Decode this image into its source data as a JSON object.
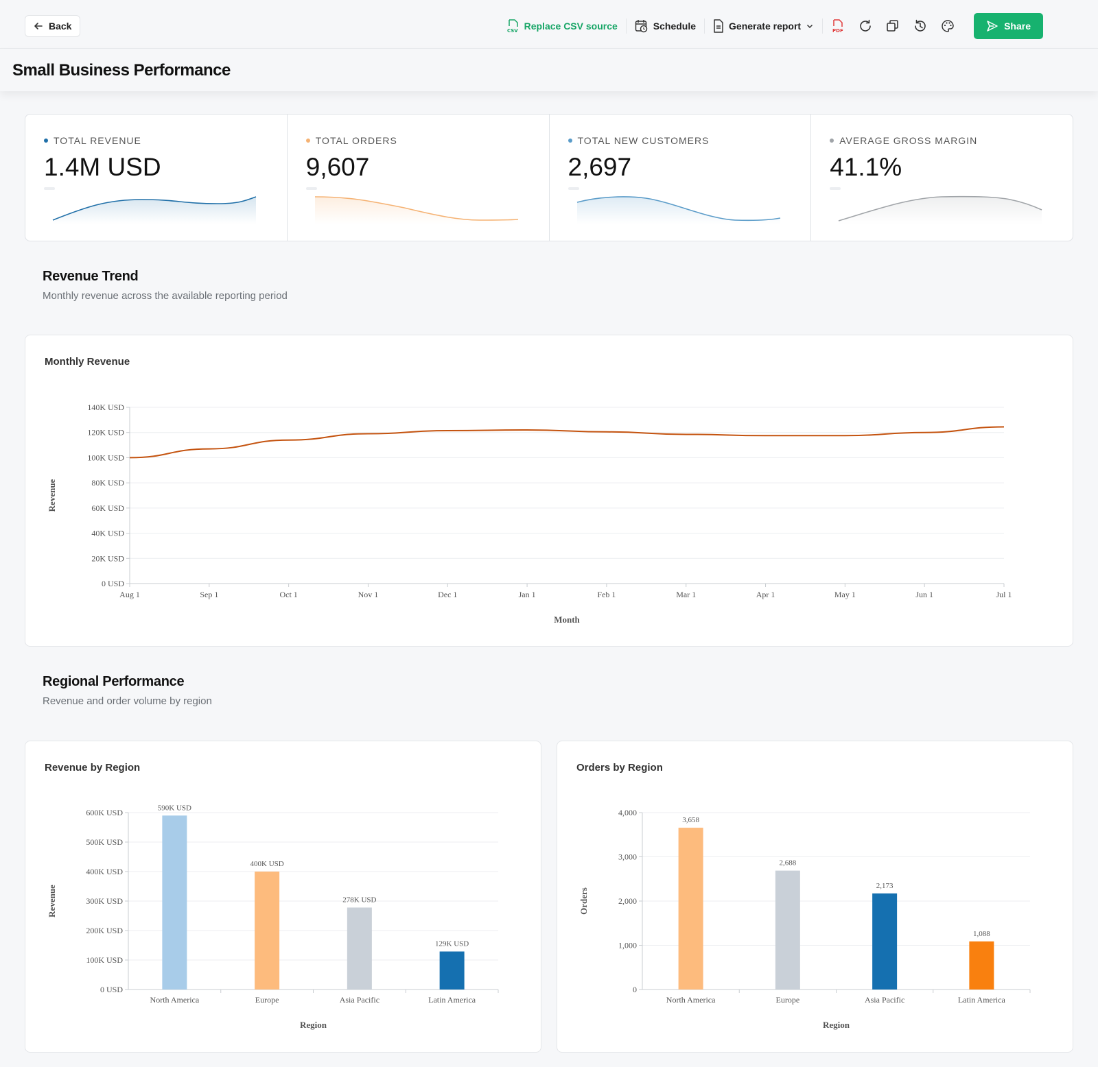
{
  "header": {
    "back_label": "Back",
    "replace_csv_label": "Replace CSV source",
    "schedule_label": "Schedule",
    "generate_report_label": "Generate report",
    "share_label": "Share",
    "page_title": "Small Business Performance"
  },
  "icons": [
    "arrow-left-icon",
    "csv-file-icon",
    "calendar-clock-icon",
    "document-icon",
    "chevron-down-icon",
    "pdf-icon",
    "refresh-icon",
    "duplicate-icon",
    "history-icon",
    "palette-icon",
    "send-icon"
  ],
  "kpis": [
    {
      "label": "TOTAL REVENUE",
      "value": "1.4M USD",
      "color": "#1f6fa8"
    },
    {
      "label": "TOTAL ORDERS",
      "value": "9,607",
      "color": "#f5b273"
    },
    {
      "label": "TOTAL NEW CUSTOMERS",
      "value": "2,697",
      "color": "#5b9cc9"
    },
    {
      "label": "AVERAGE GROSS MARGIN",
      "value": "41.1%",
      "color": "#a0a4a8"
    }
  ],
  "revenue_trend": {
    "title": "Revenue Trend",
    "subtitle": "Monthly revenue across the available reporting period"
  },
  "regional": {
    "title": "Regional Performance",
    "subtitle": "Revenue and order volume by region"
  },
  "chart_data": [
    {
      "type": "line",
      "title": "Monthly Revenue",
      "xlabel": "Month",
      "ylabel": "Revenue",
      "categories": [
        "Aug 1",
        "Sep 1",
        "Oct 1",
        "Nov 1",
        "Dec 1",
        "Jan 1",
        "Feb 1",
        "Mar 1",
        "Apr 1",
        "May 1",
        "Jun 1",
        "Jul 1"
      ],
      "values": [
        100000,
        107000,
        114000,
        119000,
        121500,
        122000,
        120500,
        118500,
        117500,
        117500,
        120000,
        124500
      ],
      "yticks": [
        "0 USD",
        "20K USD",
        "40K USD",
        "60K USD",
        "80K USD",
        "100K USD",
        "120K USD",
        "140K USD"
      ],
      "ylim": [
        0,
        140000
      ],
      "color": "#c4530f"
    },
    {
      "type": "bar",
      "title": "Revenue by Region",
      "xlabel": "Region",
      "ylabel": "Revenue",
      "categories": [
        "North America",
        "Europe",
        "Asia Pacific",
        "Latin America"
      ],
      "values": [
        590000,
        400000,
        278000,
        129000
      ],
      "value_labels": [
        "590K USD",
        "400K USD",
        "278K USD",
        "129K USD"
      ],
      "yticks": [
        "0 USD",
        "100K USD",
        "200K USD",
        "300K USD",
        "400K USD",
        "500K USD",
        "600K USD"
      ],
      "ylim": [
        0,
        600000
      ],
      "colors": [
        "#a8cce9",
        "#fdbb7d",
        "#c9d0d8",
        "#1570b0"
      ]
    },
    {
      "type": "bar",
      "title": "Orders by Region",
      "xlabel": "Region",
      "ylabel": "Orders",
      "categories": [
        "North America",
        "Europe",
        "Asia Pacific",
        "Latin America"
      ],
      "values": [
        3658,
        2688,
        2173,
        1088
      ],
      "value_labels": [
        "3,658",
        "2,688",
        "2,173",
        "1,088"
      ],
      "yticks": [
        "0",
        "1,000",
        "2,000",
        "3,000",
        "4,000"
      ],
      "ylim": [
        0,
        4000
      ],
      "colors": [
        "#fdbb7d",
        "#c9d0d8",
        "#1570b0",
        "#f9800f"
      ]
    }
  ]
}
